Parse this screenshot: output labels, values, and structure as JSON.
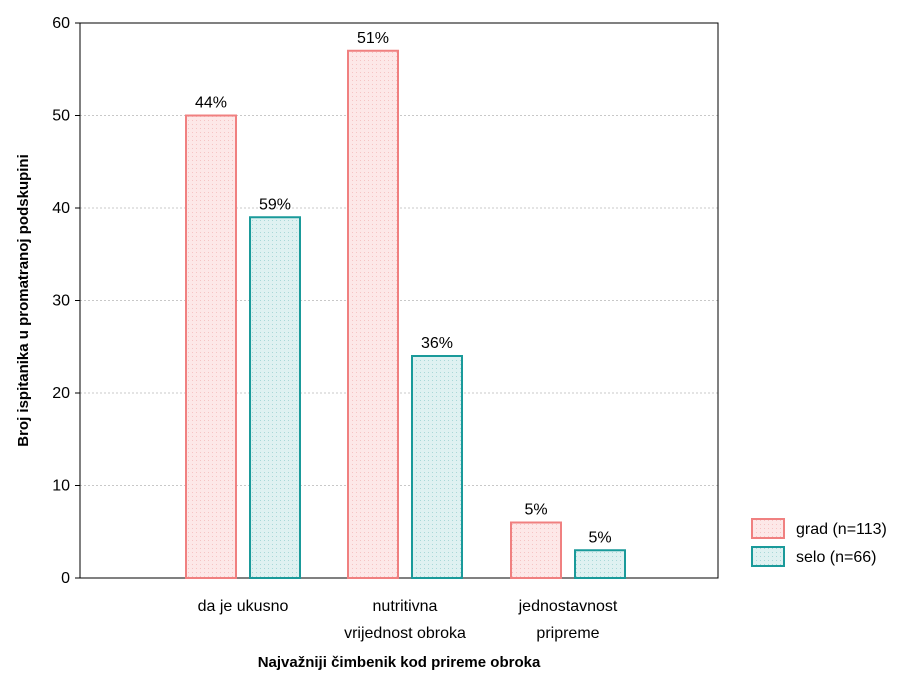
{
  "chart_data": {
    "type": "bar",
    "xlabel": "Najvažniji čimbenik kod prireme obroka",
    "ylabel": "Broj ispitanika u promatranoj podskupini",
    "ylim": [
      0,
      60
    ],
    "yticks": [
      0,
      10,
      20,
      30,
      40,
      50,
      60
    ],
    "grid": true,
    "legend_position": "right",
    "categories": [
      [
        "da je ukusno"
      ],
      [
        "nutritivna",
        "vrijednost obroka"
      ],
      [
        "jednostavnost",
        "pripreme"
      ]
    ],
    "series": [
      {
        "name": "grad (n=113)",
        "values": [
          50,
          57,
          6
        ],
        "labels": [
          "44%",
          "51%",
          "5%"
        ],
        "stroke": "#f08080",
        "fill": "#fde8e8"
      },
      {
        "name": "selo (n=66)",
        "values": [
          39,
          24,
          3
        ],
        "labels": [
          "59%",
          "36%",
          "5%"
        ],
        "stroke": "#1a9a9a",
        "fill": "#dff1f1"
      }
    ]
  }
}
